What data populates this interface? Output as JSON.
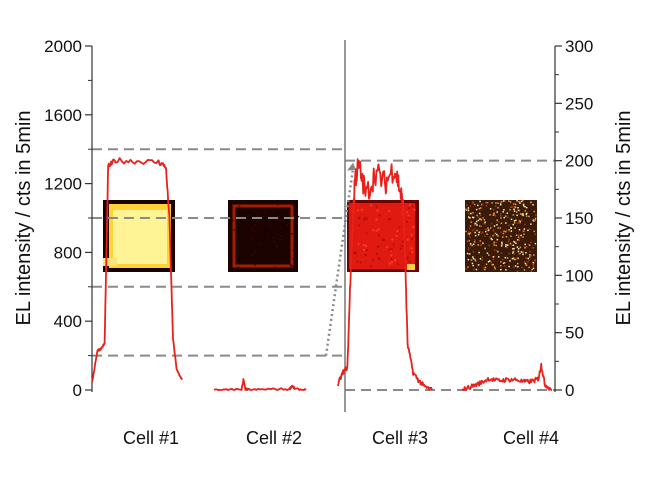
{
  "chart_data": {
    "type": "line",
    "ylabel_left": "EL intensity / cts in 5min",
    "ylabel_right": "EL intensity / cts in 5min",
    "ylim_left": [
      0,
      2000
    ],
    "ylim_right": [
      0,
      300
    ],
    "yticks_left": [
      0,
      400,
      800,
      1200,
      1600,
      2000
    ],
    "yticks_right": [
      0,
      50,
      100,
      150,
      200,
      250,
      300
    ],
    "categories": [
      "Cell #1",
      "Cell #2",
      "Cell #3",
      "Cell #4"
    ],
    "grid": false,
    "series_color": "#e8211c",
    "reference_lines": [
      {
        "axis": "left",
        "value": 1400
      },
      {
        "axis": "left",
        "value": 1000
      },
      {
        "axis": "left",
        "value": 600
      },
      {
        "axis": "left",
        "value": 200
      },
      {
        "axis": "right",
        "value": 200
      },
      {
        "axis": "right",
        "value": 0
      }
    ],
    "series": [
      {
        "axis": "left",
        "x": [
          0,
          0.06,
          0.1,
          0.14,
          0.18,
          0.26,
          0.5,
          0.74,
          0.82,
          0.86,
          0.9,
          0.94,
          1.0
        ],
        "values": [
          40,
          230,
          240,
          270,
          1300,
          1335,
          1330,
          1325,
          1300,
          1000,
          300,
          120,
          60
        ]
      },
      {
        "axis": "left",
        "x": [
          0,
          0.15,
          0.3,
          0.32,
          0.34,
          0.4,
          0.6,
          0.82,
          0.85,
          0.88,
          1.0
        ],
        "values": [
          0,
          0,
          5,
          60,
          5,
          0,
          5,
          5,
          25,
          5,
          0
        ]
      },
      {
        "axis": "right",
        "x": [
          0,
          0.05,
          0.1,
          0.14,
          0.18,
          0.22,
          0.3,
          0.4,
          0.5,
          0.6,
          0.66,
          0.7,
          0.74,
          0.8,
          0.86,
          0.92,
          1.0
        ],
        "values": [
          5,
          15,
          20,
          115,
          185,
          195,
          170,
          190,
          180,
          195,
          175,
          155,
          40,
          15,
          8,
          3,
          0
        ],
        "source_note": "range 0 to 1 spans the cell width"
      },
      {
        "axis": "right",
        "x": [
          0,
          0.1,
          0.2,
          0.3,
          0.4,
          0.5,
          0.6,
          0.7,
          0.8,
          0.85,
          0.88,
          0.92,
          1.0
        ],
        "values": [
          0,
          3,
          6,
          10,
          8,
          9,
          9,
          7,
          8,
          10,
          22,
          5,
          0
        ]
      }
    ]
  },
  "images": [
    {
      "name": "cell-1-image",
      "palette": [
        "#ffe27a",
        "#fff7a0",
        "#ffd23a",
        "#c87a00"
      ]
    },
    {
      "name": "cell-2-image",
      "palette": [
        "#3a0800",
        "#a51c00",
        "#5a0a00",
        "#1a0300"
      ]
    },
    {
      "name": "cell-3-image",
      "palette": [
        "#e01a10",
        "#b80e08",
        "#ff3a20",
        "#6a0400"
      ]
    },
    {
      "name": "cell-4-image",
      "palette": [
        "#3a1a08",
        "#e6a040",
        "#a83a10",
        "#fff0b0"
      ]
    }
  ]
}
